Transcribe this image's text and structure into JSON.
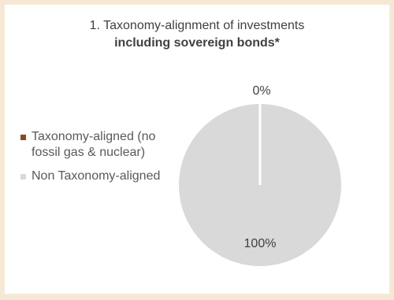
{
  "chart_data": {
    "type": "pie",
    "title_line1": "1. Taxonomy-alignment of investments",
    "title_line2": "including sovereign bonds*",
    "categories": [
      "Taxonomy-aligned (no fossil gas & nuclear)",
      "Non Taxonomy-aligned"
    ],
    "values": [
      0,
      100
    ],
    "data_labels": [
      "0%",
      "100%"
    ],
    "colors": [
      "#8b4a1c",
      "#d9d9d9"
    ],
    "legend_position": "left"
  },
  "legend": {
    "item1_label": "Taxonomy-aligned (no fossil gas & nuclear)",
    "item2_label": "Non Taxonomy-aligned"
  }
}
